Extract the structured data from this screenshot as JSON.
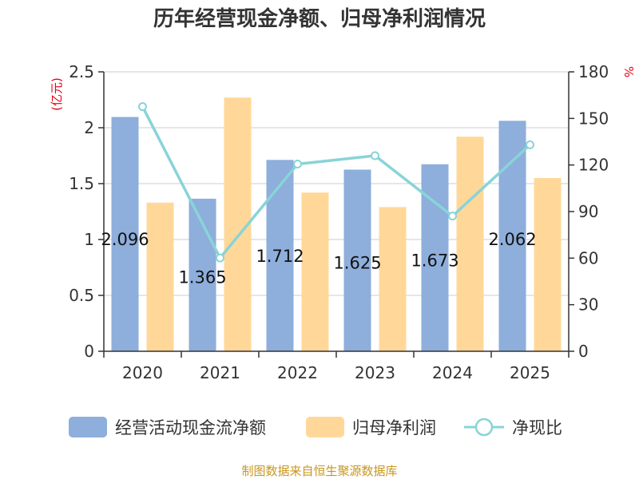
{
  "chart_data": {
    "type": "bar",
    "title": "历年经营现金净额、归母净利润情况",
    "categories": [
      "2020",
      "2021",
      "2022",
      "2023",
      "2024",
      "2025"
    ],
    "y_left_unit": "(亿元)",
    "y_right_unit": "%",
    "y_left_range": [
      0,
      2.5
    ],
    "y_left_ticks": [
      "0",
      "0.5",
      "1",
      "1.5",
      "2",
      "2.5"
    ],
    "y_right_range": [
      0,
      180
    ],
    "y_right_ticks": [
      "0",
      "30",
      "60",
      "90",
      "120",
      "150",
      "180"
    ],
    "grid": true,
    "legend_position": "bottom",
    "series": [
      {
        "name": "经营活动现金流净额",
        "kind": "bar",
        "axis": "left",
        "color": "#8eaedb",
        "values": [
          2.096,
          1.365,
          1.712,
          1.625,
          1.673,
          2.062
        ],
        "labels": [
          "2.096",
          "1.365",
          "1.712",
          "1.625",
          "1.673",
          "2.062"
        ]
      },
      {
        "name": "归母净利润",
        "kind": "bar",
        "axis": "left",
        "color": "#ffd899",
        "values": [
          1.33,
          2.27,
          1.42,
          1.29,
          1.92,
          1.55
        ]
      },
      {
        "name": "净现比",
        "kind": "line",
        "axis": "right",
        "color": "#88d4d8",
        "values": [
          157.6,
          60.1,
          120.6,
          126.0,
          87.1,
          133.0
        ]
      }
    ]
  },
  "source": "制图数据来自恒生聚源数据库"
}
